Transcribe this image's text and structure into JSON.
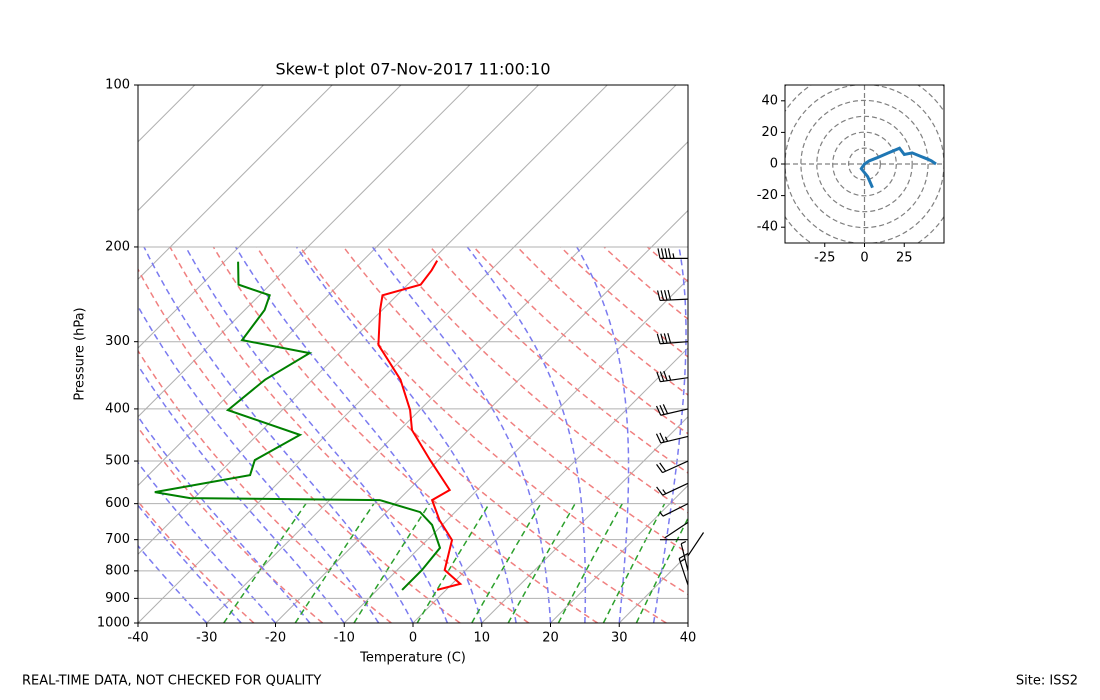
{
  "chart_data": [
    {
      "type": "skewt",
      "title": "Skew-t plot 07-Nov-2017 11:00:10",
      "x_label": "Temperature (C)",
      "y_label": "Pressure (hPa)",
      "xlim": [
        -40,
        40
      ],
      "xticks": [
        -40,
        -30,
        -20,
        -10,
        0,
        10,
        20,
        30,
        40
      ],
      "ylim": [
        1000,
        100
      ],
      "yticks": [
        100,
        200,
        300,
        400,
        500,
        600,
        700,
        800,
        900,
        1000
      ],
      "log_y": true,
      "grid": true,
      "series": [
        {
          "color": "#ff0000",
          "pressure": [
            868,
            846,
            797,
            701,
            644,
            591,
            566,
            498,
            438,
            402,
            353,
            304,
            262,
            246,
            235,
            221,
            212
          ],
          "values": [
            -1.3,
            1.2,
            -3.1,
            -6.4,
            -11.1,
            -15.1,
            -14.0,
            -21.2,
            -28.2,
            -31.4,
            -37.2,
            -45.5,
            -50.3,
            -52.1,
            -48.1,
            -48.6,
            -49.2
          ]
        },
        {
          "color": "#008000",
          "pressure": [
            868,
            797,
            725,
            657,
            622,
            591,
            586,
            571,
            531,
            498,
            447,
            402,
            353,
            315,
            298,
            262,
            246,
            235,
            213
          ],
          "values": [
            -6.4,
            -6.4,
            -7.0,
            -11.5,
            -15.1,
            -22.7,
            -50.6,
            -56.6,
            -45.2,
            -46.7,
            -43.8,
            -57.9,
            -56.9,
            -54.3,
            -66.0,
            -67.1,
            -68.5,
            -74.6,
            -78.0
          ]
        }
      ],
      "wind": {
        "pressure": [
          850,
          800,
          750,
          700,
          650,
          600,
          550,
          500,
          450,
          400,
          350,
          300,
          250,
          210
        ],
        "u": [
          5,
          2,
          -2,
          0,
          3,
          8,
          15,
          22,
          25,
          30,
          35,
          40,
          42,
          45
        ],
        "v": [
          -15,
          -8,
          -3,
          0,
          2,
          4,
          7,
          10,
          6,
          7,
          5,
          3,
          2,
          0
        ]
      }
    },
    {
      "type": "hodograph",
      "color": "#1f77b4",
      "xlim": [
        -50,
        50
      ],
      "xticks": [
        -25,
        0,
        25
      ],
      "ylim": [
        -50,
        50
      ],
      "yticks": [
        -40,
        -20,
        0,
        20,
        40
      ]
    }
  ],
  "footer": {
    "left": "REAL-TIME DATA, NOT CHECKED FOR QUALITY",
    "right": "Site: ISS2"
  }
}
